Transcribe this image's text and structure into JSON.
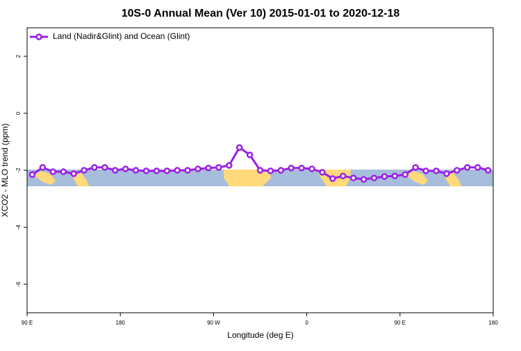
{
  "chart_data": {
    "type": "line",
    "title": "10S-0 Annual Mean (Ver 10)   2015-01-01 to 2020-12-18",
    "xlabel": "Longitude (deg E)",
    "ylabel": "XCO2 - MLO trend (ppm)",
    "xlim": [
      90,
      540
    ],
    "ylim": [
      -7,
      3
    ],
    "xticks": [
      {
        "value": 90,
        "label": "90 E"
      },
      {
        "value": 180,
        "label": "180"
      },
      {
        "value": 270,
        "label": "90 W"
      },
      {
        "value": 360,
        "label": "0"
      },
      {
        "value": 450,
        "label": "90 E"
      },
      {
        "value": 540,
        "label": "180"
      }
    ],
    "yticks": [
      -6,
      -4,
      -2,
      0,
      2
    ],
    "legend": "top-left",
    "x": [
      95,
      105,
      115,
      125,
      135,
      145,
      155,
      165,
      175,
      185,
      195,
      205,
      215,
      225,
      235,
      245,
      255,
      265,
      275,
      285,
      295,
      305,
      315,
      325,
      335,
      345,
      355,
      365,
      375,
      385,
      395,
      405,
      415,
      425,
      435,
      445,
      455,
      465,
      475,
      485,
      495,
      505,
      515,
      525,
      535
    ],
    "series": [
      {
        "name": "Land (Nadir&Glint) and Ocean (Glint)",
        "color": "#9b1ee6",
        "values": [
          -2.15,
          -1.9,
          -2.05,
          -2.05,
          -2.12,
          -2.0,
          -1.9,
          -1.9,
          -2.0,
          -1.95,
          -2.0,
          -2.02,
          -2.02,
          -2.02,
          -2.0,
          -2.0,
          -1.95,
          -1.92,
          -1.9,
          -1.83,
          -1.2,
          -1.46,
          -2.0,
          -2.02,
          -2.0,
          -1.92,
          -1.92,
          -1.95,
          -2.07,
          -2.29,
          -2.2,
          -2.27,
          -2.32,
          -2.27,
          -2.22,
          -2.2,
          -2.15,
          -1.9,
          -2.02,
          -2.02,
          -2.12,
          -2.0,
          -1.9,
          -1.9,
          -2.0
        ]
      }
    ]
  }
}
